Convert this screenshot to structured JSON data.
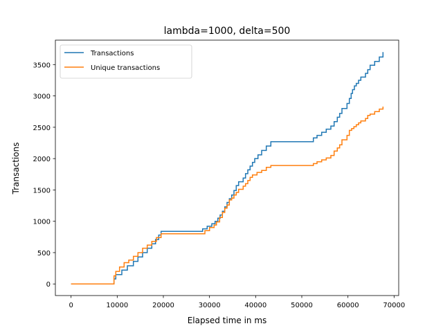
{
  "chart_data": {
    "type": "line",
    "title": "lambda=1000, delta=500",
    "xlabel": "Elapsed time in ms",
    "ylabel": "Transactions",
    "xlim": [
      -3400,
      71000
    ],
    "ylim": [
      -185,
      3890
    ],
    "xticks": [
      0,
      10000,
      20000,
      30000,
      40000,
      50000,
      60000,
      70000
    ],
    "yticks": [
      0,
      500,
      1000,
      1500,
      2000,
      2500,
      3000,
      3500
    ],
    "grid": false,
    "legend_position": "upper-left",
    "series": [
      {
        "name": "Transactions",
        "color": "#1f77b4",
        "step": true,
        "points": [
          [
            0,
            0
          ],
          [
            9000,
            0
          ],
          [
            9300,
            80
          ],
          [
            9700,
            150
          ],
          [
            11000,
            220
          ],
          [
            12200,
            290
          ],
          [
            13500,
            360
          ],
          [
            14500,
            430
          ],
          [
            15500,
            500
          ],
          [
            16500,
            570
          ],
          [
            17500,
            640
          ],
          [
            18300,
            710
          ],
          [
            19000,
            780
          ],
          [
            19500,
            840
          ],
          [
            28000,
            840
          ],
          [
            28500,
            880
          ],
          [
            29500,
            920
          ],
          [
            30500,
            960
          ],
          [
            31200,
            1000
          ],
          [
            31800,
            1050
          ],
          [
            32300,
            1100
          ],
          [
            32800,
            1160
          ],
          [
            33300,
            1230
          ],
          [
            33800,
            1300
          ],
          [
            34300,
            1360
          ],
          [
            34800,
            1420
          ],
          [
            35300,
            1490
          ],
          [
            35800,
            1570
          ],
          [
            36300,
            1630
          ],
          [
            37300,
            1690
          ],
          [
            37800,
            1760
          ],
          [
            38300,
            1820
          ],
          [
            38800,
            1880
          ],
          [
            39300,
            1940
          ],
          [
            39800,
            2000
          ],
          [
            40500,
            2060
          ],
          [
            41300,
            2130
          ],
          [
            42300,
            2200
          ],
          [
            43300,
            2270
          ],
          [
            52000,
            2270
          ],
          [
            52500,
            2330
          ],
          [
            53300,
            2370
          ],
          [
            54300,
            2420
          ],
          [
            55300,
            2470
          ],
          [
            56300,
            2520
          ],
          [
            57000,
            2590
          ],
          [
            57700,
            2660
          ],
          [
            58200,
            2720
          ],
          [
            58700,
            2800
          ],
          [
            59800,
            2880
          ],
          [
            60300,
            2960
          ],
          [
            60700,
            3040
          ],
          [
            61000,
            3100
          ],
          [
            61400,
            3160
          ],
          [
            61800,
            3200
          ],
          [
            62300,
            3250
          ],
          [
            62800,
            3300
          ],
          [
            63800,
            3360
          ],
          [
            64300,
            3420
          ],
          [
            64800,
            3490
          ],
          [
            65800,
            3550
          ],
          [
            66800,
            3620
          ],
          [
            67600,
            3700
          ]
        ]
      },
      {
        "name": "Unique transactions",
        "color": "#ff7f0e",
        "step": true,
        "points": [
          [
            0,
            0
          ],
          [
            9000,
            0
          ],
          [
            9300,
            130
          ],
          [
            9700,
            200
          ],
          [
            10500,
            270
          ],
          [
            11500,
            340
          ],
          [
            12500,
            380
          ],
          [
            13500,
            440
          ],
          [
            14500,
            500
          ],
          [
            15500,
            570
          ],
          [
            16500,
            620
          ],
          [
            17500,
            680
          ],
          [
            18500,
            740
          ],
          [
            19500,
            800
          ],
          [
            28500,
            800
          ],
          [
            29000,
            850
          ],
          [
            30000,
            900
          ],
          [
            31000,
            940
          ],
          [
            31500,
            990
          ],
          [
            32200,
            1060
          ],
          [
            32800,
            1140
          ],
          [
            33300,
            1210
          ],
          [
            33800,
            1260
          ],
          [
            34300,
            1340
          ],
          [
            34800,
            1370
          ],
          [
            35300,
            1420
          ],
          [
            35800,
            1460
          ],
          [
            36300,
            1510
          ],
          [
            37300,
            1560
          ],
          [
            37800,
            1600
          ],
          [
            38300,
            1650
          ],
          [
            38800,
            1700
          ],
          [
            39300,
            1740
          ],
          [
            40300,
            1780
          ],
          [
            41300,
            1810
          ],
          [
            42300,
            1860
          ],
          [
            43300,
            1890
          ],
          [
            52000,
            1890
          ],
          [
            52500,
            1920
          ],
          [
            53300,
            1950
          ],
          [
            54300,
            1980
          ],
          [
            55300,
            2010
          ],
          [
            56300,
            2050
          ],
          [
            57000,
            2120
          ],
          [
            57700,
            2170
          ],
          [
            58200,
            2220
          ],
          [
            58700,
            2300
          ],
          [
            59800,
            2370
          ],
          [
            60300,
            2450
          ],
          [
            60800,
            2480
          ],
          [
            61300,
            2510
          ],
          [
            61800,
            2540
          ],
          [
            62300,
            2570
          ],
          [
            62800,
            2600
          ],
          [
            63800,
            2640
          ],
          [
            64300,
            2690
          ],
          [
            64800,
            2710
          ],
          [
            65800,
            2750
          ],
          [
            66800,
            2790
          ],
          [
            67600,
            2830
          ]
        ]
      }
    ]
  }
}
